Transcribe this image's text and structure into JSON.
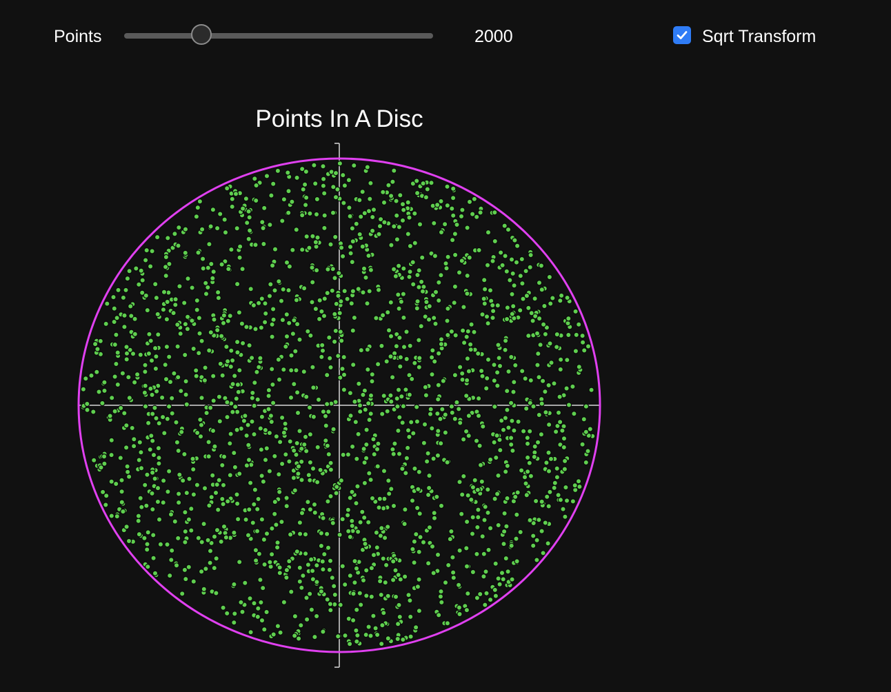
{
  "controls": {
    "points_label": "Points",
    "points_value": "2000",
    "points_fraction": 0.25,
    "sqrt_label": "Sqrt Transform",
    "sqrt_checked": true
  },
  "chart_data": {
    "type": "scatter",
    "title": "Points In A Disc",
    "point_count": 2000,
    "distribution": "uniform in unit disc (radius = sqrt(u))",
    "xlim": [
      -1,
      1
    ],
    "ylim": [
      -1,
      1
    ],
    "circle_radius": 1,
    "axes_through_origin": true,
    "colors": {
      "points": "#5fcf4f",
      "point_outline": "#0a0a0a",
      "circle": "#e040f0",
      "axes": "#d9d9d9",
      "title": "#ffffff",
      "background": "#111111"
    }
  },
  "colors": {
    "background": "#111111",
    "accent": "#2f7cf6",
    "slider_track": "#5a5a5a"
  }
}
